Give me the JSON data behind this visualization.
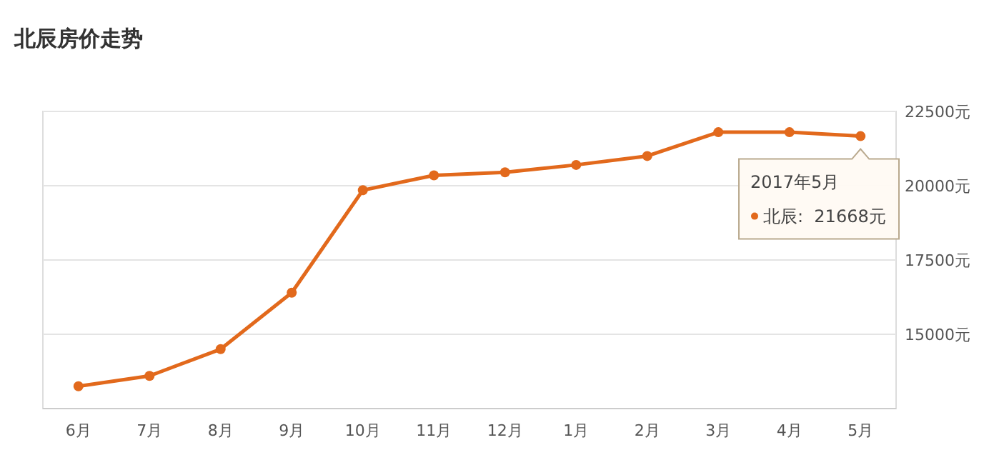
{
  "chart_data": {
    "type": "line",
    "title": "北辰房价走势",
    "categories": [
      "6月",
      "7月",
      "8月",
      "9月",
      "10月",
      "11月",
      "12月",
      "1月",
      "2月",
      "3月",
      "4月",
      "5月"
    ],
    "series": [
      {
        "color": "#e2691c",
        "values": [
          13250,
          13600,
          14500,
          16400,
          19850,
          20350,
          20450,
          20700,
          21000,
          21800,
          21800,
          21668
        ]
      }
    ],
    "ylim": [
      12500,
      22500
    ],
    "yticks": [
      {
        "value": 15000,
        "label": "15000元"
      },
      {
        "value": 17500,
        "label": "17500元"
      },
      {
        "value": 20000,
        "label": "20000元"
      },
      {
        "value": 22500,
        "label": "22500元"
      }
    ],
    "grid": "y",
    "marker": "circle",
    "line_style": "solid",
    "annotations": [
      "2017年5月",
      "北辰:  21668元"
    ]
  }
}
